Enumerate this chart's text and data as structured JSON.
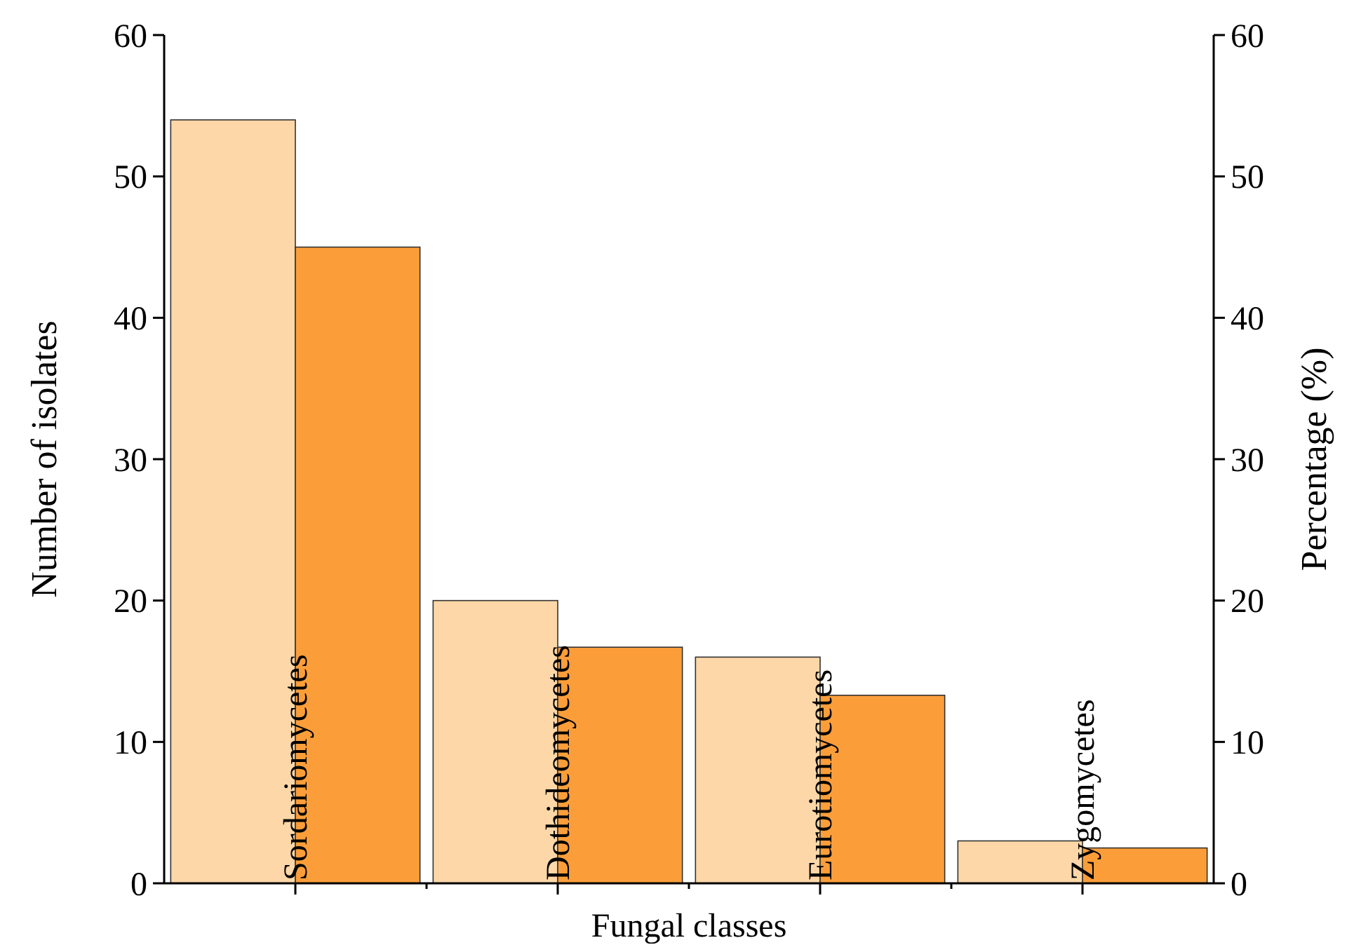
{
  "chart_data": {
    "type": "bar",
    "xlabel": "Fungal classes",
    "ylabel": "Number of isolates",
    "y2label": "Percentage (%)",
    "categories": [
      "Sordariomycetes",
      "Dothideomycetes",
      "Eurotiomycetes",
      "Zygomycetes"
    ],
    "series": [
      {
        "color": "#fdd7a8",
        "values": [
          54,
          20,
          16,
          3
        ]
      },
      {
        "color": "#fb9e3a",
        "values": [
          45,
          16.7,
          13.3,
          2.5
        ],
        "axis": "y2"
      }
    ],
    "ylim": [
      0,
      60
    ],
    "yticks": [
      0,
      10,
      20,
      30,
      40,
      50,
      60
    ],
    "y2lim": [
      0,
      60
    ],
    "y2ticks": [
      0,
      10,
      20,
      30,
      40,
      50,
      60
    ],
    "grid": false
  }
}
